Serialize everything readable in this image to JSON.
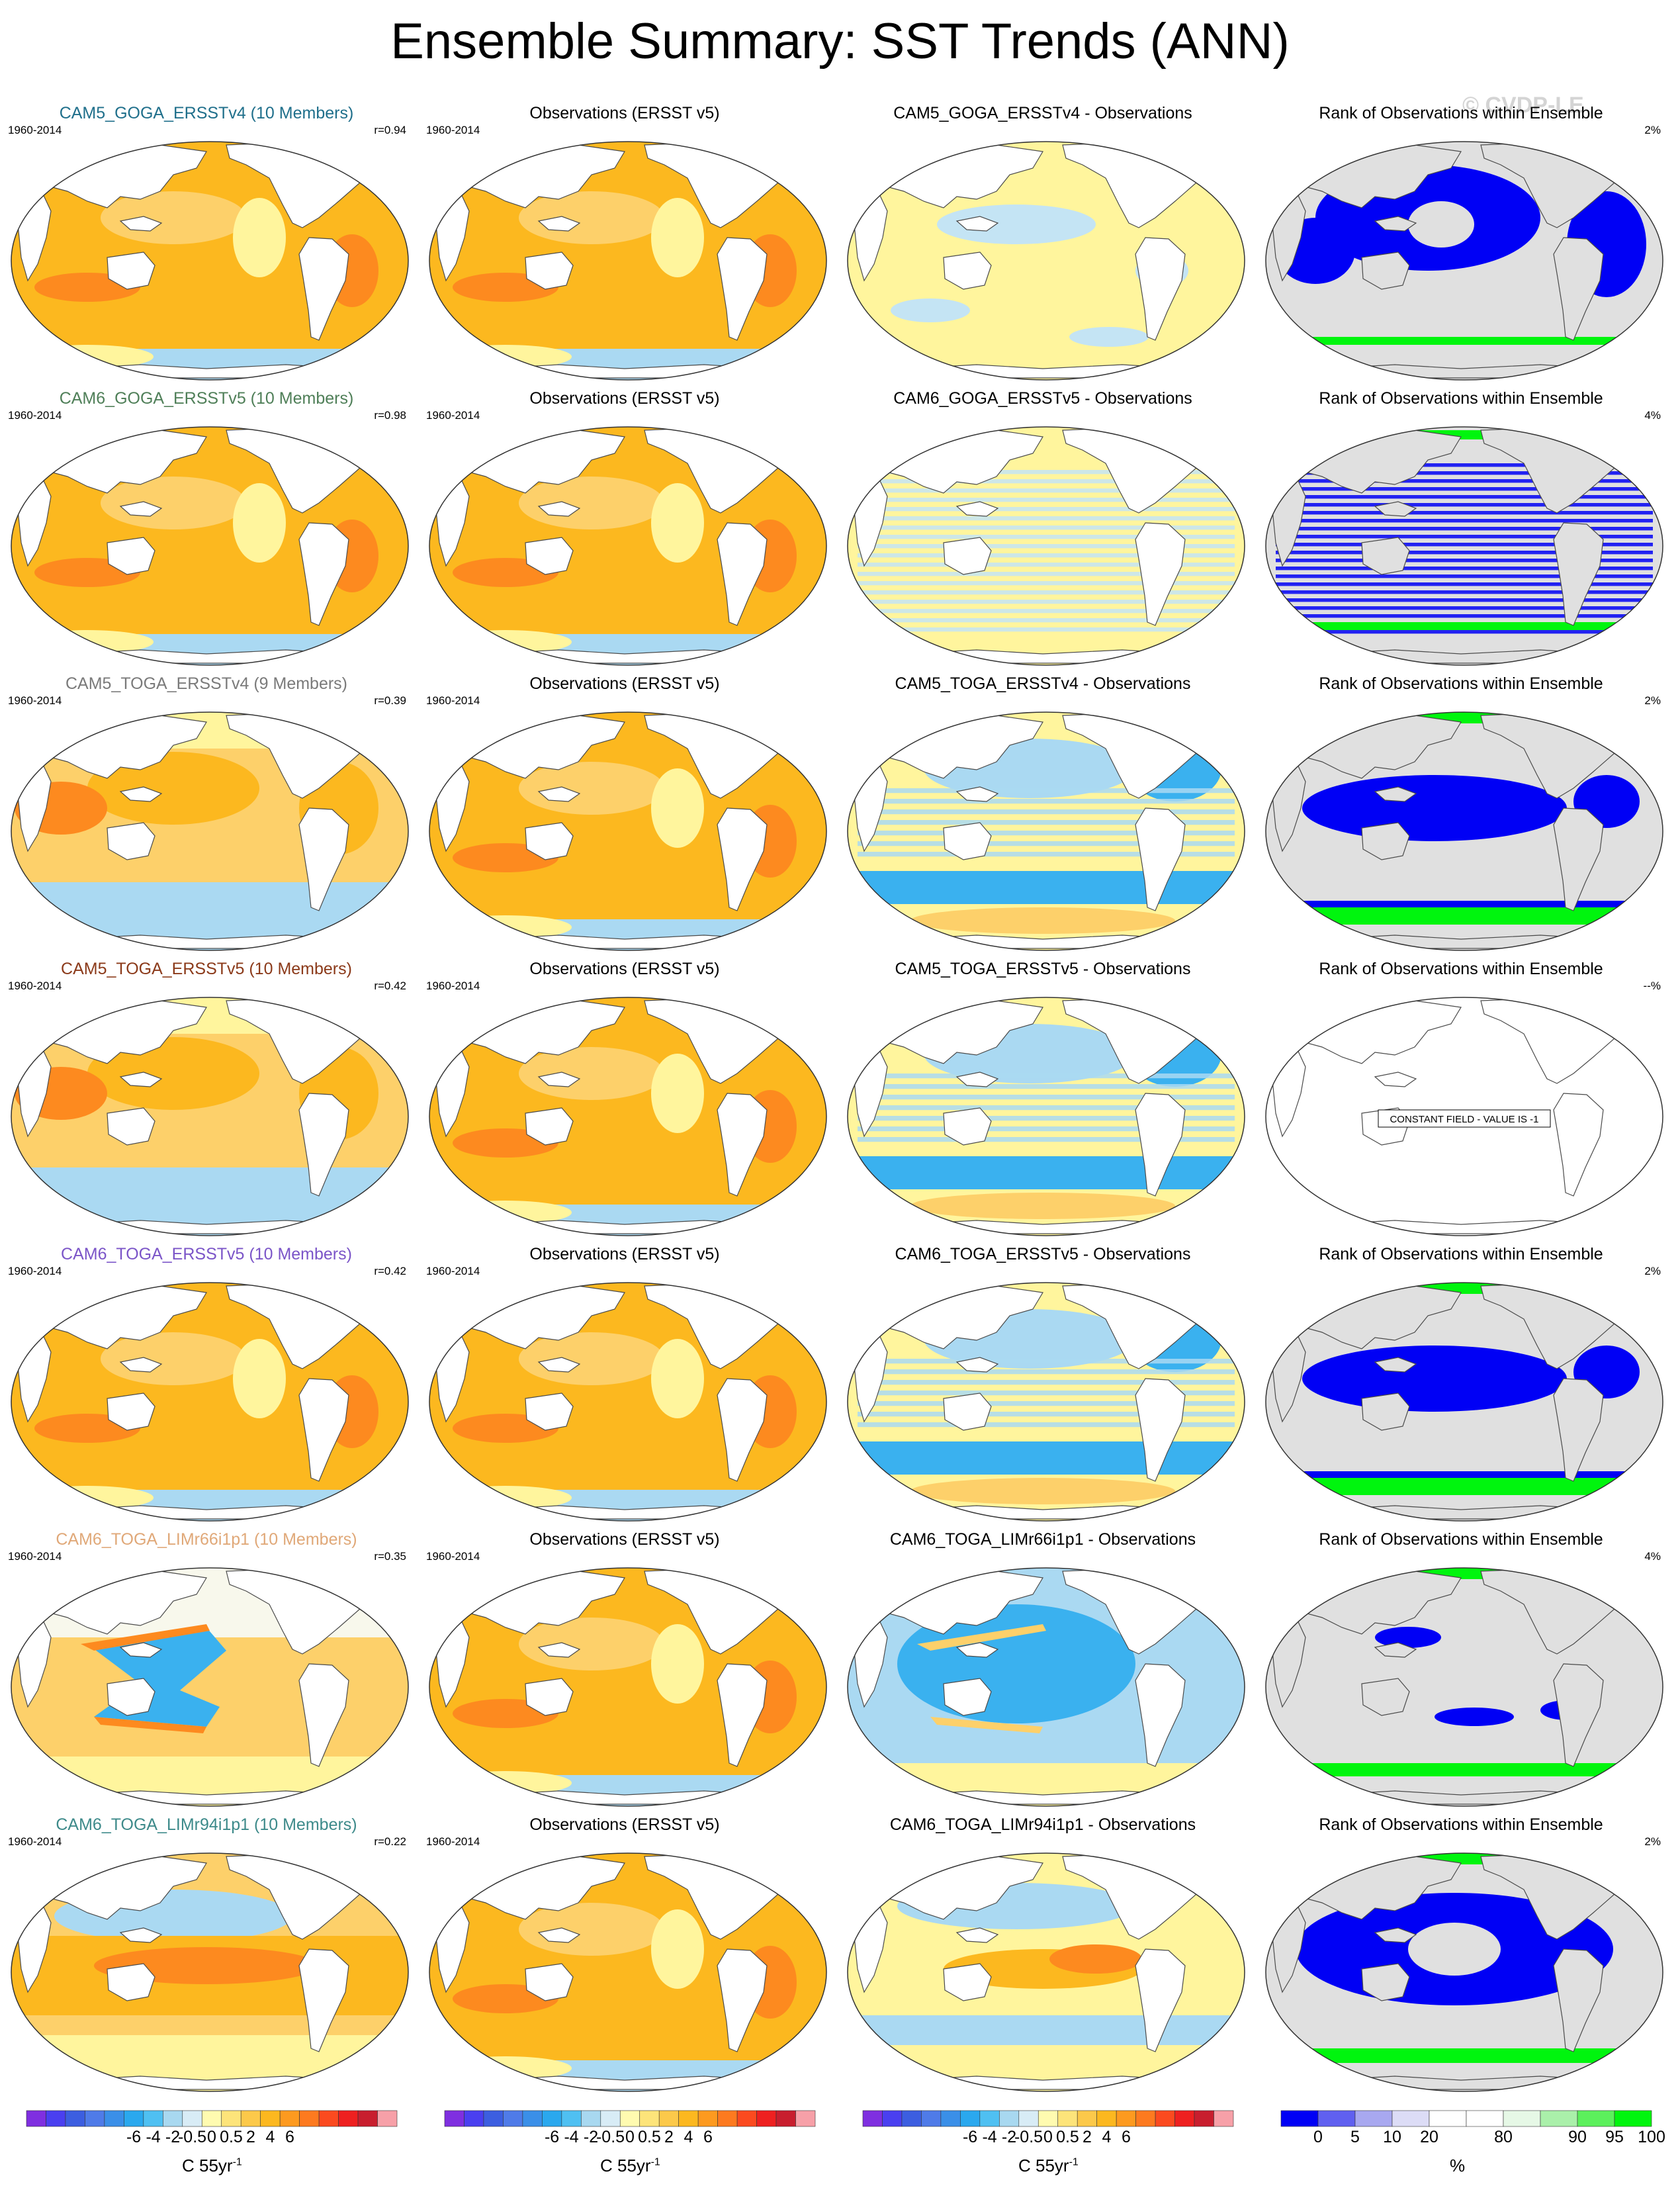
{
  "title": "Ensemble Summary: SST Trends (ANN)",
  "watermark": "© CVDP-LE",
  "colors": {
    "ocean_warm": "#fcb81f",
    "ocean_mid": "#fdd06a",
    "ocean_light": "#fff59d",
    "ocean_cool": "#aad9f2",
    "ocean_cold": "#3ab1ef",
    "ocean_red": "#fd8a1f",
    "rank_blue": "#0000f5",
    "rank_green": "#00f50e",
    "rank_gray": "#e0e0e0"
  },
  "rows": [
    {
      "ens_title": "CAM5_GOGA_ERSSTv4 (10 Members)",
      "ens_color": "#1f6f8b",
      "period": "1960-2014",
      "r": "r=0.94",
      "obs_title": "Observations (ERSST v5)",
      "obs_period": "1960-2014",
      "diff_title": "CAM5_GOGA_ERSSTv4 - Observations",
      "rank_title": "Rank of Observations within Ensemble",
      "rank_pct": "2%",
      "ens_style": "warm",
      "diff_style": "light",
      "rank_style": "blue"
    },
    {
      "ens_title": "CAM6_GOGA_ERSSTv5 (10 Members)",
      "ens_color": "#4f7f58",
      "period": "1960-2014",
      "r": "r=0.98",
      "obs_title": "Observations (ERSST v5)",
      "obs_period": "1960-2014",
      "diff_title": "CAM6_GOGA_ERSSTv5 - Observations",
      "rank_title": "Rank of Observations within Ensemble",
      "rank_pct": "4%",
      "ens_style": "warm",
      "diff_style": "lightcool",
      "rank_style": "bluestripe"
    },
    {
      "ens_title": "CAM5_TOGA_ERSSTv4 (9 Members)",
      "ens_color": "#7a7a7a",
      "period": "1960-2014",
      "r": "r=0.39",
      "obs_title": "Observations (ERSST v5)",
      "obs_period": "1960-2014",
      "diff_title": "CAM5_TOGA_ERSSTv4 - Observations",
      "rank_title": "Rank of Observations within Ensemble",
      "rank_pct": "2%",
      "ens_style": "toga",
      "diff_style": "cool",
      "rank_style": "greenblue"
    },
    {
      "ens_title": "CAM5_TOGA_ERSSTv5 (10 Members)",
      "ens_color": "#8b3a1a",
      "period": "1960-2014",
      "r": "r=0.42",
      "obs_title": "Observations (ERSST v5)",
      "obs_period": "1960-2014",
      "diff_title": "CAM5_TOGA_ERSSTv5 - Observations",
      "rank_title": "Rank of Observations within Ensemble",
      "rank_pct": "--%",
      "constant_field": "CONSTANT FIELD - VALUE IS -1",
      "ens_style": "toga",
      "diff_style": "cool",
      "rank_style": "constant"
    },
    {
      "ens_title": "CAM6_TOGA_ERSSTv5 (10 Members)",
      "ens_color": "#7b55c8",
      "period": "1960-2014",
      "r": "r=0.42",
      "obs_title": "Observations (ERSST v5)",
      "obs_period": "1960-2014",
      "diff_title": "CAM6_TOGA_ERSSTv5 - Observations",
      "rank_title": "Rank of Observations within Ensemble",
      "rank_pct": "2%",
      "ens_style": "warm",
      "diff_style": "cool",
      "rank_style": "greenblue"
    },
    {
      "ens_title": "CAM6_TOGA_LIMr66i1p1 (10 Members)",
      "ens_color": "#e0a878",
      "period": "1960-2014",
      "r": "r=0.35",
      "obs_title": "Observations (ERSST v5)",
      "obs_period": "1960-2014",
      "diff_title": "CAM6_TOGA_LIMr66i1p1 - Observations",
      "rank_title": "Rank of Observations within Ensemble",
      "rank_pct": "4%",
      "ens_style": "lim66",
      "diff_style": "cold",
      "rank_style": "sparse"
    },
    {
      "ens_title": "CAM6_TOGA_LIMr94i1p1 (10 Members)",
      "ens_color": "#3d8a8a",
      "period": "1960-2014",
      "r": "r=0.22",
      "obs_title": "Observations (ERSST v5)",
      "obs_period": "1960-2014",
      "diff_title": "CAM6_TOGA_LIMr94i1p1 - Observations",
      "rank_title": "Rank of Observations within Ensemble",
      "rank_pct": "2%",
      "ens_style": "lim94",
      "diff_style": "mixed",
      "rank_style": "bigblue"
    }
  ],
  "colorbars": {
    "trend": {
      "unit": "C 55yr",
      "unit_sup": "-1",
      "labels": [
        "-6",
        "-4",
        "-2",
        "-0.5",
        "0",
        "0.5",
        "2",
        "4",
        "6"
      ],
      "colors": [
        "#7f2fe0",
        "#4a3ff0",
        "#3c5ee0",
        "#4f7be8",
        "#3a8fe8",
        "#2aa8ee",
        "#4fc0f2",
        "#a8d8f0",
        "#d8ecf6",
        "#fffbb0",
        "#fde47a",
        "#fcc94a",
        "#fcb81f",
        "#fd9a1f",
        "#fd7a1f",
        "#fb4a1f",
        "#ee2020",
        "#c81e2e",
        "#f7a0a8"
      ]
    },
    "rank": {
      "unit": "%",
      "labels": [
        "0",
        "5",
        "10",
        "20",
        "80",
        "90",
        "95",
        "100"
      ],
      "colors": [
        "#0000f5",
        "#6060f0",
        "#a8a8f0",
        "#dcdcf6",
        "#ffffff",
        "#ffffff",
        "#e6f8e6",
        "#aaf0aa",
        "#5cf05c",
        "#00f50e"
      ]
    }
  }
}
